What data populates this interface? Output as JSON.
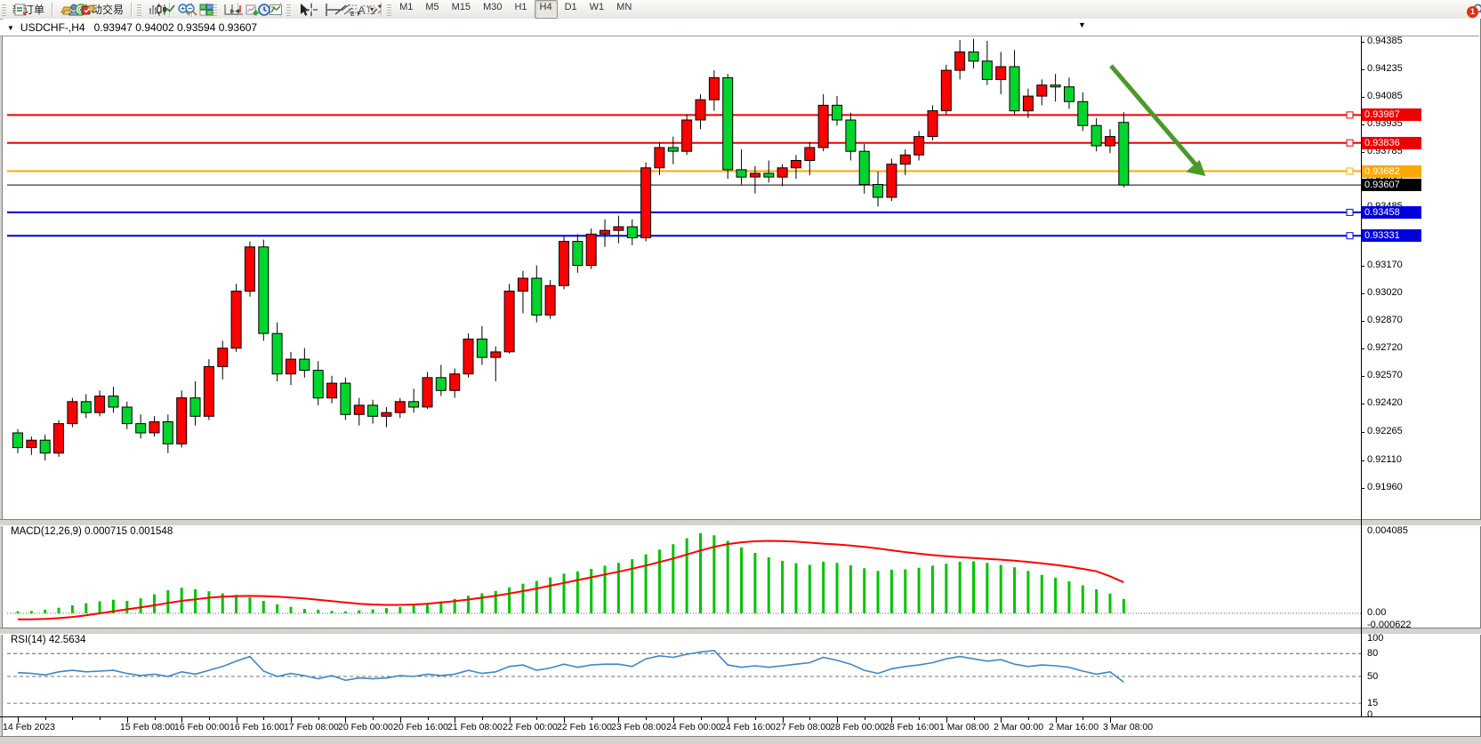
{
  "toolbar": {
    "new_order_label": "新订单",
    "autotrade_label": "自动交易",
    "timeframes": [
      "M1",
      "M5",
      "M15",
      "M30",
      "H1",
      "H4",
      "D1",
      "W1",
      "MN"
    ],
    "active_timeframe": "H4",
    "notification_count": "1"
  },
  "chart": {
    "title_symbol": "USDCHF-,H4",
    "title_quotes": "0.93947 0.94002 0.93594 0.93607",
    "window_menu_glyph": "▼",
    "shift_marker_glyph": "▼"
  },
  "macd_panel": {
    "label": "MACD(12,26,9) 0.000715 0.001548",
    "axis": [
      "0.004085",
      "0.00",
      "-0.000622"
    ]
  },
  "rsi_panel": {
    "label": "RSI(14) 42.5634",
    "axis": [
      "100",
      "80",
      "50",
      "15",
      "0"
    ]
  },
  "colors": {
    "candle_up": "#ff0000",
    "candle_down": "#00d52d",
    "wick": "#000000",
    "macd_hist": "#00c400",
    "macd_signal": "#ff0000",
    "rsi_line": "#3f86c8",
    "level_red": "#ee0000",
    "level_orange": "#ffa800",
    "level_blue": "#0000dd",
    "bid_line": "#000000",
    "arrow": "#4a9a28"
  },
  "chart_data": {
    "type": "candlestick",
    "symbol": "USDCHF-",
    "timeframe": "H4",
    "current_bar": {
      "open": 0.93947,
      "high": 0.94002,
      "low": 0.93594,
      "close": 0.93607
    },
    "price_axis_ticks": [
      0.94385,
      0.94235,
      0.94085,
      0.93935,
      0.93785,
      0.93635,
      0.93485,
      0.9317,
      0.9302,
      0.9287,
      0.9272,
      0.9257,
      0.9242,
      0.92265,
      0.9211,
      0.9196
    ],
    "hlines": [
      {
        "price": 0.93987,
        "color_key": "level_red",
        "width": 2,
        "anchor": true
      },
      {
        "price": 0.93836,
        "color_key": "level_red",
        "width": 2,
        "anchor": true
      },
      {
        "price": 0.93682,
        "color_key": "level_orange",
        "width": 2,
        "anchor": true
      },
      {
        "price": 0.93607,
        "color_key": "bid_line",
        "width": 1,
        "anchor": false
      },
      {
        "price": 0.93458,
        "color_key": "level_blue",
        "width": 2,
        "anchor": true
      },
      {
        "price": 0.93331,
        "color_key": "level_blue",
        "width": 2,
        "anchor": true
      }
    ],
    "time_labels": [
      [
        "14 Feb 2023",
        0
      ],
      [
        "15 Feb 08:00",
        8
      ],
      [
        "16 Feb 00:00",
        12
      ],
      [
        "16 Feb 16:00",
        16
      ],
      [
        "17 Feb 08:00",
        20
      ],
      [
        "20 Feb 00:00",
        24
      ],
      [
        "20 Feb 16:00",
        28
      ],
      [
        "21 Feb 08:00",
        32
      ],
      [
        "22 Feb 00:00",
        36
      ],
      [
        "22 Feb 16:00",
        40
      ],
      [
        "23 Feb 08:00",
        44
      ],
      [
        "24 Feb 00:00",
        48
      ],
      [
        "24 Feb 16:00",
        52
      ],
      [
        "27 Feb 08:00",
        56
      ],
      [
        "28 Feb 00:00",
        60
      ],
      [
        "28 Feb 16:00",
        64
      ],
      [
        "1 Mar 08:00",
        68
      ],
      [
        "2 Mar 00:00",
        72
      ],
      [
        "2 Mar 16:00",
        76
      ],
      [
        "3 Mar 08:00",
        80
      ]
    ],
    "candles": [
      [
        0.9226,
        0.9228,
        0.9215,
        0.9218
      ],
      [
        0.9218,
        0.9224,
        0.9214,
        0.9222
      ],
      [
        0.9222,
        0.9225,
        0.9211,
        0.9215
      ],
      [
        0.9215,
        0.9233,
        0.9213,
        0.9231
      ],
      [
        0.9231,
        0.9245,
        0.9229,
        0.9243
      ],
      [
        0.9243,
        0.9247,
        0.9234,
        0.9237
      ],
      [
        0.9237,
        0.9249,
        0.9235,
        0.9246
      ],
      [
        0.9246,
        0.9251,
        0.9237,
        0.924
      ],
      [
        0.924,
        0.9243,
        0.9228,
        0.9231
      ],
      [
        0.9231,
        0.9236,
        0.9223,
        0.9226
      ],
      [
        0.9226,
        0.9235,
        0.9224,
        0.9232
      ],
      [
        0.9232,
        0.9236,
        0.9215,
        0.922
      ],
      [
        0.922,
        0.9249,
        0.9218,
        0.9245
      ],
      [
        0.9245,
        0.9254,
        0.923,
        0.9235
      ],
      [
        0.9235,
        0.9266,
        0.9233,
        0.9262
      ],
      [
        0.9262,
        0.9276,
        0.9255,
        0.9272
      ],
      [
        0.9272,
        0.9307,
        0.927,
        0.9303
      ],
      [
        0.9303,
        0.933,
        0.93,
        0.9327
      ],
      [
        0.9327,
        0.9331,
        0.9276,
        0.928
      ],
      [
        0.928,
        0.9286,
        0.9254,
        0.9258
      ],
      [
        0.9258,
        0.927,
        0.9252,
        0.9266
      ],
      [
        0.9266,
        0.9272,
        0.9256,
        0.926
      ],
      [
        0.926,
        0.9265,
        0.9241,
        0.9245
      ],
      [
        0.9245,
        0.9257,
        0.9242,
        0.9253
      ],
      [
        0.9253,
        0.9256,
        0.9233,
        0.9236
      ],
      [
        0.9236,
        0.9245,
        0.923,
        0.9241
      ],
      [
        0.9241,
        0.9244,
        0.9231,
        0.9235
      ],
      [
        0.9235,
        0.924,
        0.9229,
        0.9237
      ],
      [
        0.9237,
        0.9245,
        0.9234,
        0.9243
      ],
      [
        0.9243,
        0.925,
        0.9237,
        0.924
      ],
      [
        0.924,
        0.9259,
        0.9239,
        0.9256
      ],
      [
        0.9256,
        0.9263,
        0.9246,
        0.9249
      ],
      [
        0.9249,
        0.9261,
        0.9245,
        0.9258
      ],
      [
        0.9258,
        0.928,
        0.9256,
        0.9277
      ],
      [
        0.9277,
        0.9284,
        0.9263,
        0.9267
      ],
      [
        0.9267,
        0.9273,
        0.9254,
        0.927
      ],
      [
        0.927,
        0.9307,
        0.9269,
        0.9303
      ],
      [
        0.9303,
        0.9314,
        0.9291,
        0.931
      ],
      [
        0.931,
        0.9317,
        0.9286,
        0.929
      ],
      [
        0.929,
        0.9309,
        0.9288,
        0.9306
      ],
      [
        0.9306,
        0.9333,
        0.9304,
        0.933
      ],
      [
        0.933,
        0.9334,
        0.9313,
        0.9317
      ],
      [
        0.9317,
        0.9337,
        0.9315,
        0.9334
      ],
      [
        0.9334,
        0.9342,
        0.9327,
        0.9336
      ],
      [
        0.9336,
        0.9344,
        0.9329,
        0.9338
      ],
      [
        0.9338,
        0.9342,
        0.9328,
        0.9332
      ],
      [
        0.9332,
        0.9373,
        0.933,
        0.937
      ],
      [
        0.937,
        0.9384,
        0.9366,
        0.9381
      ],
      [
        0.9381,
        0.9387,
        0.9372,
        0.9379
      ],
      [
        0.9379,
        0.9399,
        0.9377,
        0.9396
      ],
      [
        0.9396,
        0.941,
        0.9391,
        0.9407
      ],
      [
        0.9407,
        0.9423,
        0.9401,
        0.9419
      ],
      [
        0.9419,
        0.9421,
        0.9364,
        0.9369
      ],
      [
        0.9369,
        0.938,
        0.9361,
        0.9365
      ],
      [
        0.9365,
        0.9371,
        0.9356,
        0.9367
      ],
      [
        0.9367,
        0.9374,
        0.9362,
        0.9365
      ],
      [
        0.9365,
        0.9372,
        0.936,
        0.937
      ],
      [
        0.937,
        0.9377,
        0.9364,
        0.9374
      ],
      [
        0.9374,
        0.9384,
        0.9366,
        0.9381
      ],
      [
        0.9381,
        0.941,
        0.9379,
        0.9404
      ],
      [
        0.9404,
        0.9409,
        0.9393,
        0.9396
      ],
      [
        0.9396,
        0.94,
        0.9374,
        0.9379
      ],
      [
        0.9379,
        0.9383,
        0.9356,
        0.9361
      ],
      [
        0.9361,
        0.9368,
        0.9349,
        0.9354
      ],
      [
        0.9354,
        0.9375,
        0.9352,
        0.9372
      ],
      [
        0.9372,
        0.938,
        0.9366,
        0.9377
      ],
      [
        0.9377,
        0.939,
        0.9374,
        0.9387
      ],
      [
        0.9387,
        0.9404,
        0.9385,
        0.9401
      ],
      [
        0.9401,
        0.9426,
        0.9399,
        0.9423
      ],
      [
        0.9423,
        0.94395,
        0.9418,
        0.9433
      ],
      [
        0.9433,
        0.944,
        0.9424,
        0.9428
      ],
      [
        0.9428,
        0.9439,
        0.9415,
        0.9418
      ],
      [
        0.9418,
        0.9433,
        0.941,
        0.9425
      ],
      [
        0.9425,
        0.9434,
        0.9399,
        0.9401
      ],
      [
        0.9401,
        0.9413,
        0.9397,
        0.9409
      ],
      [
        0.9409,
        0.9418,
        0.9404,
        0.9415
      ],
      [
        0.9415,
        0.9421,
        0.9406,
        0.9414
      ],
      [
        0.9414,
        0.9419,
        0.9402,
        0.9406
      ],
      [
        0.9406,
        0.9411,
        0.939,
        0.9393
      ],
      [
        0.9393,
        0.9397,
        0.9379,
        0.9382
      ],
      [
        0.9382,
        0.9391,
        0.9378,
        0.9387
      ],
      [
        0.93947,
        0.94002,
        0.93594,
        0.93607
      ]
    ],
    "macd": {
      "axis_max": 0.004085,
      "axis_min": -0.000622,
      "histogram": [
        0.0001,
        0.00012,
        0.00018,
        0.00028,
        0.0004,
        0.0005,
        0.0006,
        0.00068,
        0.00062,
        0.00075,
        0.00095,
        0.00115,
        0.00128,
        0.0012,
        0.0011,
        0.001,
        0.00092,
        0.0008,
        0.00062,
        0.00045,
        0.00032,
        0.00022,
        0.00018,
        0.00012,
        0.0001,
        0.00015,
        0.0002,
        0.00026,
        0.00032,
        0.0004,
        0.0005,
        0.0006,
        0.00072,
        0.00088,
        0.001,
        0.00112,
        0.0013,
        0.00148,
        0.00162,
        0.0018,
        0.00198,
        0.0021,
        0.00222,
        0.00238,
        0.00252,
        0.0027,
        0.00295,
        0.00318,
        0.00345,
        0.00375,
        0.004,
        0.0039,
        0.00362,
        0.0033,
        0.00302,
        0.0028,
        0.00262,
        0.0025,
        0.00242,
        0.00258,
        0.00252,
        0.0024,
        0.00225,
        0.00212,
        0.00218,
        0.0022,
        0.00228,
        0.00238,
        0.00248,
        0.00258,
        0.0026,
        0.00252,
        0.00242,
        0.0023,
        0.00212,
        0.00192,
        0.00178,
        0.0016,
        0.0014,
        0.0012,
        0.00098,
        0.00072
      ],
      "signal": [
        -0.0003,
        -0.0003,
        -0.00028,
        -0.00024,
        -0.00018,
        -0.0001,
        0.0,
        0.0001,
        0.0002,
        0.0003,
        0.0004,
        0.00052,
        0.00062,
        0.0007,
        0.00078,
        0.00083,
        0.00086,
        0.00087,
        0.00086,
        0.00083,
        0.00079,
        0.00074,
        0.00068,
        0.00061,
        0.00054,
        0.00048,
        0.00044,
        0.00042,
        0.00042,
        0.00044,
        0.00048,
        0.00054,
        0.00061,
        0.00069,
        0.00078,
        0.00088,
        0.00099,
        0.00111,
        0.00124,
        0.00138,
        0.00152,
        0.00166,
        0.0018,
        0.00194,
        0.00208,
        0.00223,
        0.00239,
        0.00256,
        0.00274,
        0.00294,
        0.00314,
        0.00332,
        0.00346,
        0.00355,
        0.0036,
        0.00362,
        0.00361,
        0.00358,
        0.00353,
        0.00348,
        0.00344,
        0.00339,
        0.00332,
        0.00324,
        0.00315,
        0.00306,
        0.00298,
        0.00291,
        0.00285,
        0.0028,
        0.00276,
        0.00272,
        0.00268,
        0.00263,
        0.00257,
        0.0025,
        0.00242,
        0.00233,
        0.00222,
        0.0021,
        0.00185,
        0.00155
      ]
    },
    "rsi": {
      "levels": [
        80,
        50,
        15
      ],
      "values": [
        55,
        54,
        52,
        56,
        58,
        56,
        57,
        58,
        54,
        51,
        53,
        50,
        56,
        53,
        58,
        63,
        70,
        76,
        57,
        50,
        54,
        51,
        47,
        51,
        45,
        48,
        47,
        48,
        51,
        50,
        53,
        51,
        53,
        58,
        54,
        56,
        63,
        65,
        58,
        61,
        66,
        62,
        65,
        66,
        66,
        63,
        73,
        77,
        75,
        79,
        82,
        84,
        65,
        62,
        64,
        62,
        64,
        66,
        68,
        75,
        71,
        66,
        58,
        54,
        60,
        63,
        65,
        68,
        73,
        76,
        73,
        70,
        72,
        66,
        63,
        65,
        64,
        62,
        57,
        53,
        56,
        42.6
      ]
    },
    "annotations": [
      {
        "type": "down-arrow",
        "color": "#4a9a28"
      }
    ]
  }
}
